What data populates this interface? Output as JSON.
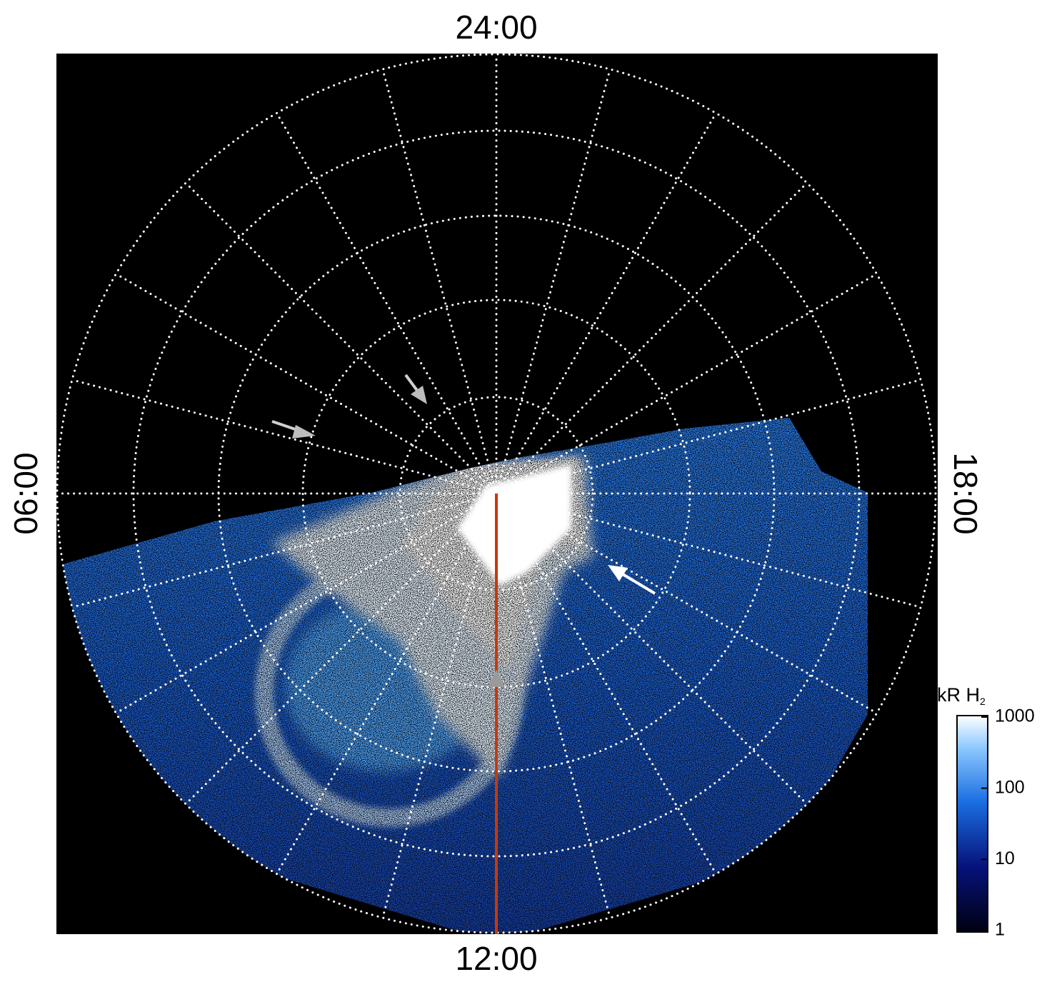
{
  "map": {
    "labels": {
      "top": "24:00",
      "bottom": "12:00",
      "left": "06:00",
      "right": "18:00"
    }
  },
  "colorbar": {
    "title": "kR H",
    "title_sub": "2",
    "range": [
      1,
      1000
    ],
    "log": true,
    "ticks": [
      1,
      10,
      100,
      1000
    ]
  }
}
